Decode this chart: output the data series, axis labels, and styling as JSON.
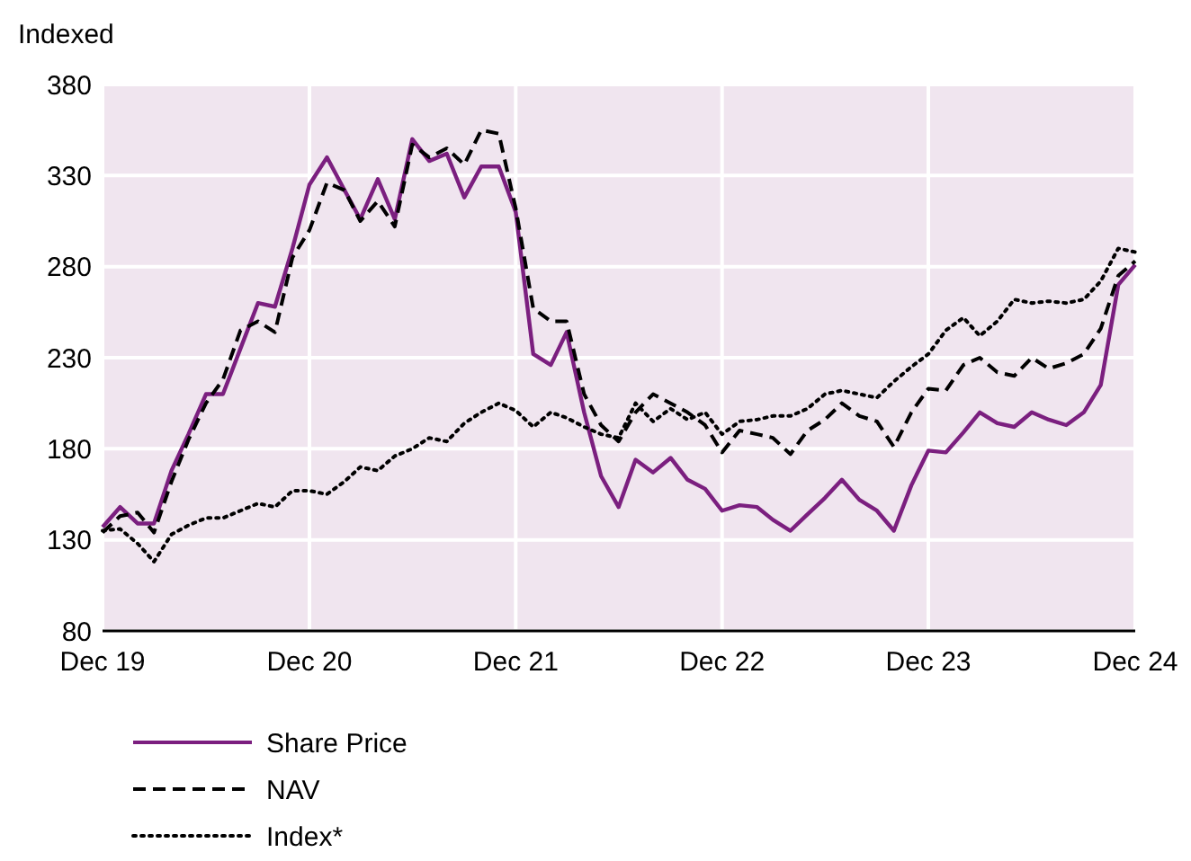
{
  "chart_data": {
    "type": "line",
    "ylabel": "Indexed",
    "x": [
      "2019-12",
      "2020-01",
      "2020-02",
      "2020-03",
      "2020-04",
      "2020-05",
      "2020-06",
      "2020-07",
      "2020-08",
      "2020-09",
      "2020-10",
      "2020-11",
      "2020-12",
      "2021-01",
      "2021-02",
      "2021-03",
      "2021-04",
      "2021-05",
      "2021-06",
      "2021-07",
      "2021-08",
      "2021-09",
      "2021-10",
      "2021-11",
      "2021-12",
      "2022-01",
      "2022-02",
      "2022-03",
      "2022-04",
      "2022-05",
      "2022-06",
      "2022-07",
      "2022-08",
      "2022-09",
      "2022-10",
      "2022-11",
      "2022-12",
      "2023-01",
      "2023-02",
      "2023-03",
      "2023-04",
      "2023-05",
      "2023-06",
      "2023-07",
      "2023-08",
      "2023-09",
      "2023-10",
      "2023-11",
      "2023-12",
      "2024-01",
      "2024-02",
      "2024-03",
      "2024-04",
      "2024-05",
      "2024-06",
      "2024-07",
      "2024-08",
      "2024-09",
      "2024-10",
      "2024-11",
      "2024-12"
    ],
    "series": [
      {
        "name": "Share Price",
        "color": "#7b1f7f",
        "line_style": "solid",
        "values": [
          137,
          148,
          139,
          139,
          168,
          188,
          210,
          210,
          235,
          260,
          258,
          290,
          325,
          340,
          322,
          306,
          328,
          306,
          350,
          338,
          342,
          318,
          335,
          335,
          310,
          232,
          226,
          244,
          200,
          165,
          148,
          174,
          167,
          175,
          163,
          158,
          146,
          149,
          148,
          141,
          135,
          144,
          153,
          163,
          152,
          146,
          135,
          160,
          179,
          178,
          189,
          200,
          194,
          192,
          200,
          196,
          193,
          200,
          215,
          270,
          281
        ]
      },
      {
        "name": "NAV",
        "color": "#000000",
        "line_style": "dashed",
        "values": [
          134,
          143,
          145,
          134,
          162,
          185,
          205,
          218,
          245,
          250,
          244,
          285,
          300,
          326,
          322,
          305,
          316,
          302,
          347,
          340,
          345,
          336,
          355,
          353,
          312,
          257,
          250,
          250,
          210,
          193,
          184,
          200,
          210,
          205,
          200,
          193,
          178,
          190,
          188,
          186,
          177,
          190,
          196,
          205,
          198,
          195,
          181,
          200,
          213,
          212,
          226,
          230,
          222,
          220,
          230,
          224,
          227,
          232,
          246,
          275,
          283
        ]
      },
      {
        "name": "Index*",
        "color": "#000000",
        "line_style": "dotted",
        "values": [
          135,
          136,
          128,
          118,
          133,
          138,
          142,
          142,
          146,
          150,
          148,
          157,
          157,
          155,
          162,
          170,
          168,
          176,
          180,
          186,
          184,
          194,
          200,
          205,
          201,
          192,
          200,
          197,
          192,
          188,
          186,
          205,
          195,
          202,
          196,
          200,
          188,
          195,
          196,
          198,
          198,
          202,
          210,
          212,
          210,
          208,
          217,
          225,
          232,
          245,
          252,
          242,
          250,
          262,
          260,
          261,
          260,
          262,
          272,
          290,
          288
        ]
      }
    ],
    "xlim": [
      "2019-12",
      "2024-12"
    ],
    "xticks": [
      {
        "value": "2019-12",
        "label": "Dec 19"
      },
      {
        "value": "2020-12",
        "label": "Dec 20"
      },
      {
        "value": "2021-12",
        "label": "Dec 21"
      },
      {
        "value": "2022-12",
        "label": "Dec 22"
      },
      {
        "value": "2023-12",
        "label": "Dec 23"
      },
      {
        "value": "2024-12",
        "label": "Dec 24"
      }
    ],
    "ylim": [
      80,
      380
    ],
    "yticks": [
      80,
      130,
      180,
      230,
      280,
      330,
      380
    ],
    "grid": true,
    "legend": "bottom"
  }
}
